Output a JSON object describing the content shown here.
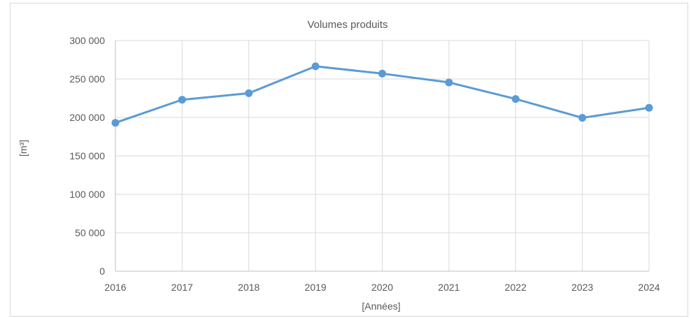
{
  "chart_data": {
    "type": "line",
    "title": "Volumes produits",
    "xlabel": "[Années]",
    "ylabel": "[m³]",
    "categories": [
      "2016",
      "2017",
      "2018",
      "2019",
      "2020",
      "2021",
      "2022",
      "2023",
      "2024"
    ],
    "series": [
      {
        "values": [
          193000,
          223000,
          231500,
          266500,
          257000,
          245500,
          224000,
          199500,
          212500
        ]
      }
    ],
    "ylim": [
      0,
      300000
    ],
    "yticks": [
      0,
      50000,
      100000,
      150000,
      200000,
      250000,
      300000
    ],
    "ytick_labels": [
      "0",
      "50 000",
      "100 000",
      "150 000",
      "200 000",
      "250 000",
      "300 000"
    ],
    "grid": "both",
    "legend": "none",
    "colors": {
      "series": "#5b9bd5",
      "grid": "#d9d9d9",
      "text": "#595959"
    }
  }
}
